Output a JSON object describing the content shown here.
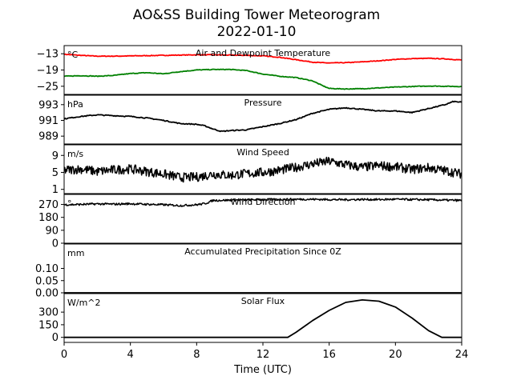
{
  "title": "AO&SS Building Tower Meteorogram",
  "subtitle": "2022-01-10",
  "chart_data": {
    "type": "line",
    "title": "AO&SS Building Tower Meteorogram",
    "subtitle": "2022-01-10",
    "xlabel": "Time (UTC)",
    "xlim": [
      0,
      24
    ],
    "xticks": [
      "0",
      "4",
      "8",
      "12",
      "16",
      "20",
      "24"
    ],
    "panels": [
      {
        "key": "temp",
        "label": "Air and Dewpoint Temperature",
        "unit": "°C",
        "ylim": [
          -28,
          -10
        ],
        "yticks": [
          -13,
          -19,
          -25
        ],
        "ytick_labels": [
          "−13",
          "−19",
          "−25"
        ],
        "series": [
          {
            "color": "#ff0000",
            "x": [
              0,
              1,
              2,
              3,
              4,
              5,
              6,
              7,
              8,
              9,
              10,
              11,
              12,
              13,
              14,
              15,
              15.5,
              16,
              17,
              18,
              19,
              20,
              21,
              22,
              23,
              24
            ],
            "y": [
              -13.2,
              -13.6,
              -13.9,
              -13.9,
              -13.8,
              -13.7,
              -13.6,
              -13.5,
              -13.4,
              -13.4,
              -13.5,
              -13.6,
              -13.8,
              -14.3,
              -15.2,
              -16.1,
              -16.3,
              -16.4,
              -16.3,
              -16.0,
              -15.6,
              -15.1,
              -14.8,
              -14.7,
              -14.9,
              -15.3
            ]
          },
          {
            "color": "#008000",
            "x": [
              0,
              1,
              2,
              3,
              4,
              5,
              6,
              7,
              8,
              9,
              10,
              11,
              12,
              13,
              14,
              15,
              15.5,
              16,
              17,
              18,
              19,
              20,
              21,
              22,
              23,
              24
            ],
            "y": [
              -21.3,
              -21.1,
              -21.3,
              -21.0,
              -20.3,
              -20.0,
              -20.4,
              -19.6,
              -19.0,
              -18.8,
              -18.8,
              -19.2,
              -20.5,
              -21.3,
              -21.8,
              -23.0,
              -24.5,
              -25.8,
              -26.0,
              -25.9,
              -25.6,
              -25.3,
              -25.1,
              -24.9,
              -25.0,
              -25.1
            ]
          }
        ]
      },
      {
        "key": "pressure",
        "label": "Pressure",
        "unit": "hPa",
        "ylim": [
          988,
          994.2
        ],
        "yticks": [
          993,
          991,
          989
        ],
        "ytick_labels": [
          "993",
          "991",
          "989"
        ],
        "series": [
          {
            "color": "#000000",
            "x": [
              0,
              1,
              2,
              3,
              4,
              5,
              6,
              7,
              8,
              8.5,
              9,
              9.5,
              10,
              11,
              12,
              13,
              14,
              15,
              16,
              17,
              18,
              19,
              20,
              21,
              22,
              23,
              23.5,
              24
            ],
            "y": [
              991.2,
              991.5,
              991.7,
              991.6,
              991.5,
              991.3,
              991.0,
              990.6,
              990.5,
              990.3,
              989.9,
              989.6,
              989.7,
              989.8,
              990.2,
              990.6,
              991.1,
              991.9,
              992.4,
              992.6,
              992.4,
              992.2,
              992.2,
              992.0,
              992.5,
              993.0,
              993.4,
              993.3
            ]
          }
        ]
      },
      {
        "key": "wind_speed",
        "label": "Wind Speed",
        "unit": "m/s",
        "ylim": [
          0,
          11.5
        ],
        "yticks": [
          9,
          5,
          1
        ],
        "ytick_labels": [
          "9",
          "5",
          "1"
        ],
        "series": [
          {
            "color": "#000000",
            "x": [
              0,
              1,
              2,
              3,
              4,
              5,
              6,
              7,
              8,
              9,
              10,
              11,
              12,
              13,
              14,
              15,
              16,
              17,
              18,
              19,
              20,
              21,
              22,
              23,
              24
            ],
            "y": [
              5.5,
              5.8,
              5.2,
              5.6,
              5.8,
              5.2,
              4.6,
              3.8,
              3.9,
              4.6,
              4.3,
              4.7,
              5.0,
              5.5,
              6.2,
              7.0,
              7.6,
              6.8,
              6.2,
              6.6,
              6.3,
              5.7,
              6.1,
              5.4,
              4.6
            ],
            "noise": 1.1
          }
        ]
      },
      {
        "key": "wind_dir",
        "label": "Wind Direction",
        "unit": "°",
        "ylim": [
          0,
          340
        ],
        "yticks": [
          270,
          180,
          90,
          0
        ],
        "ytick_labels": [
          "270",
          "180",
          "90",
          "0"
        ],
        "series": [
          {
            "color": "#000000",
            "x": [
              0,
              1,
              2,
              3,
              4,
              5,
              6,
              7,
              8,
              8.5,
              9,
              10,
              11,
              12,
              13,
              14,
              15,
              16,
              17,
              18,
              19,
              20,
              21,
              22,
              23,
              24
            ],
            "y": [
              268,
              270,
              274,
              272,
              275,
              271,
              268,
              262,
              268,
              276,
              298,
              300,
              302,
              304,
              305,
              306,
              306,
              304,
              303,
              305,
              304,
              306,
              304,
              303,
              300,
              298
            ],
            "noise": 7
          }
        ]
      },
      {
        "key": "precip",
        "label": "Accumulated Precipitation Since 0Z",
        "unit": "mm",
        "ylim": [
          0,
          0.2
        ],
        "yticks": [
          0.1,
          0.05,
          0
        ],
        "ytick_labels": [
          "0.10",
          "0.05",
          "0.00"
        ],
        "series": [
          {
            "color": "#000000",
            "x": [
              0,
              24
            ],
            "y": [
              0,
              0
            ]
          }
        ]
      },
      {
        "key": "solar",
        "label": "Solar Flux",
        "unit": "W/m^2",
        "ylim": [
          -60,
          520
        ],
        "yticks": [
          300,
          150,
          0
        ],
        "ytick_labels": [
          "300",
          "150",
          "0"
        ],
        "series": [
          {
            "color": "#000000",
            "x": [
              0,
              13.5,
              14,
              15,
              16,
              17,
              18,
              19,
              20,
              21,
              22,
              22.8,
              24
            ],
            "y": [
              0,
              0,
              60,
              200,
              320,
              415,
              445,
              430,
              360,
              230,
              80,
              0,
              0
            ]
          }
        ]
      }
    ]
  }
}
